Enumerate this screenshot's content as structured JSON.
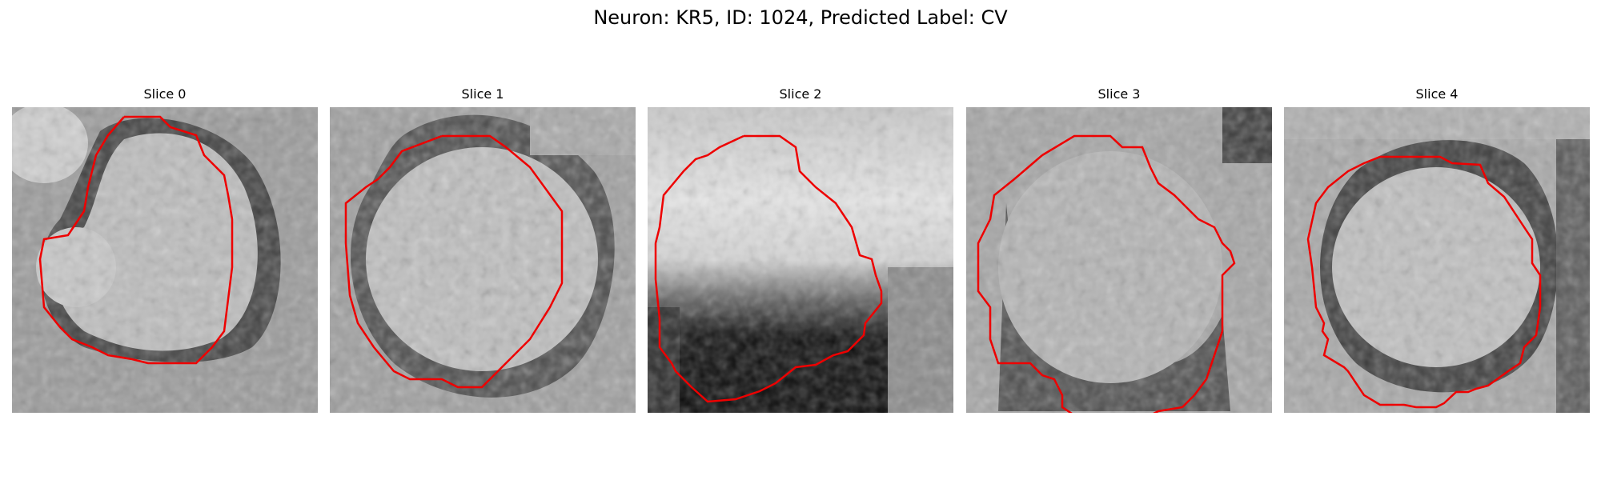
{
  "figure": {
    "suptitle": "Neuron: KR5, ID: 1024, Predicted Label: CV"
  },
  "panels": [
    {
      "title": "Slice 0"
    },
    {
      "title": "Slice 1"
    },
    {
      "title": "Slice 2"
    },
    {
      "title": "Slice 3"
    },
    {
      "title": "Slice 4"
    }
  ],
  "colors": {
    "contour": "#ee0000",
    "background": "#ffffff"
  }
}
